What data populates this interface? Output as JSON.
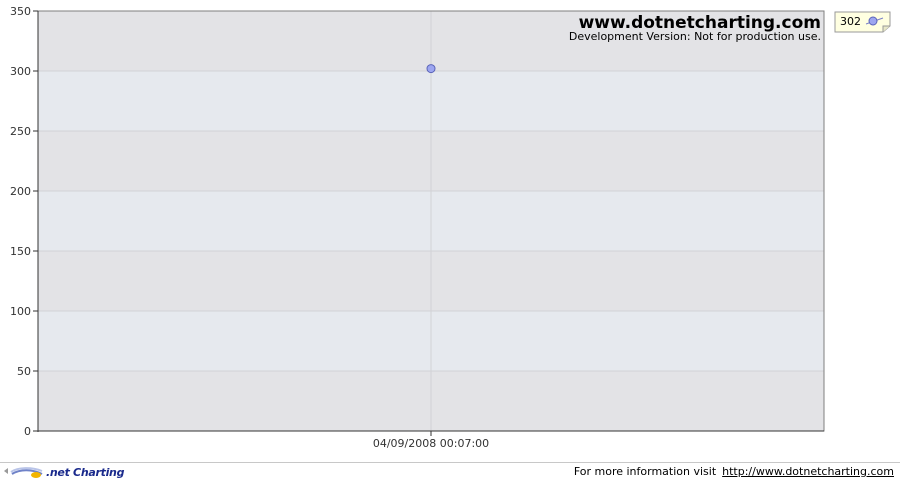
{
  "chart_data": {
    "type": "scatter",
    "x": [
      "04/09/2008 00:07:00"
    ],
    "series": [
      {
        "values": [
          302
        ],
        "color": "#9da6f0"
      }
    ],
    "ylim": [
      0,
      350
    ],
    "yticks": [
      "0",
      "50",
      "100",
      "150",
      "200",
      "250",
      "300",
      "350"
    ],
    "xticks": [
      "04/09/2008 00:07:00"
    ],
    "legend": {
      "placement": "top-right",
      "entries": [
        {
          "label": "302"
        }
      ]
    },
    "grid": true,
    "colors": {
      "band_dark": "#e3e3e6",
      "band_light": "#e6e9ee",
      "gridline": "#d2d2d6",
      "marker": "#9da6f0",
      "marker_stroke": "#5a63b8",
      "legend_bg": "#ffffe1"
    }
  },
  "watermark": {
    "title": "www.dotnetcharting.com",
    "subtitle": "Development Version: Not for production use."
  },
  "footer": {
    "logo_text": ".net Charting",
    "info_text": "For more information visit",
    "link_text": "http://www.dotnetcharting.com"
  }
}
